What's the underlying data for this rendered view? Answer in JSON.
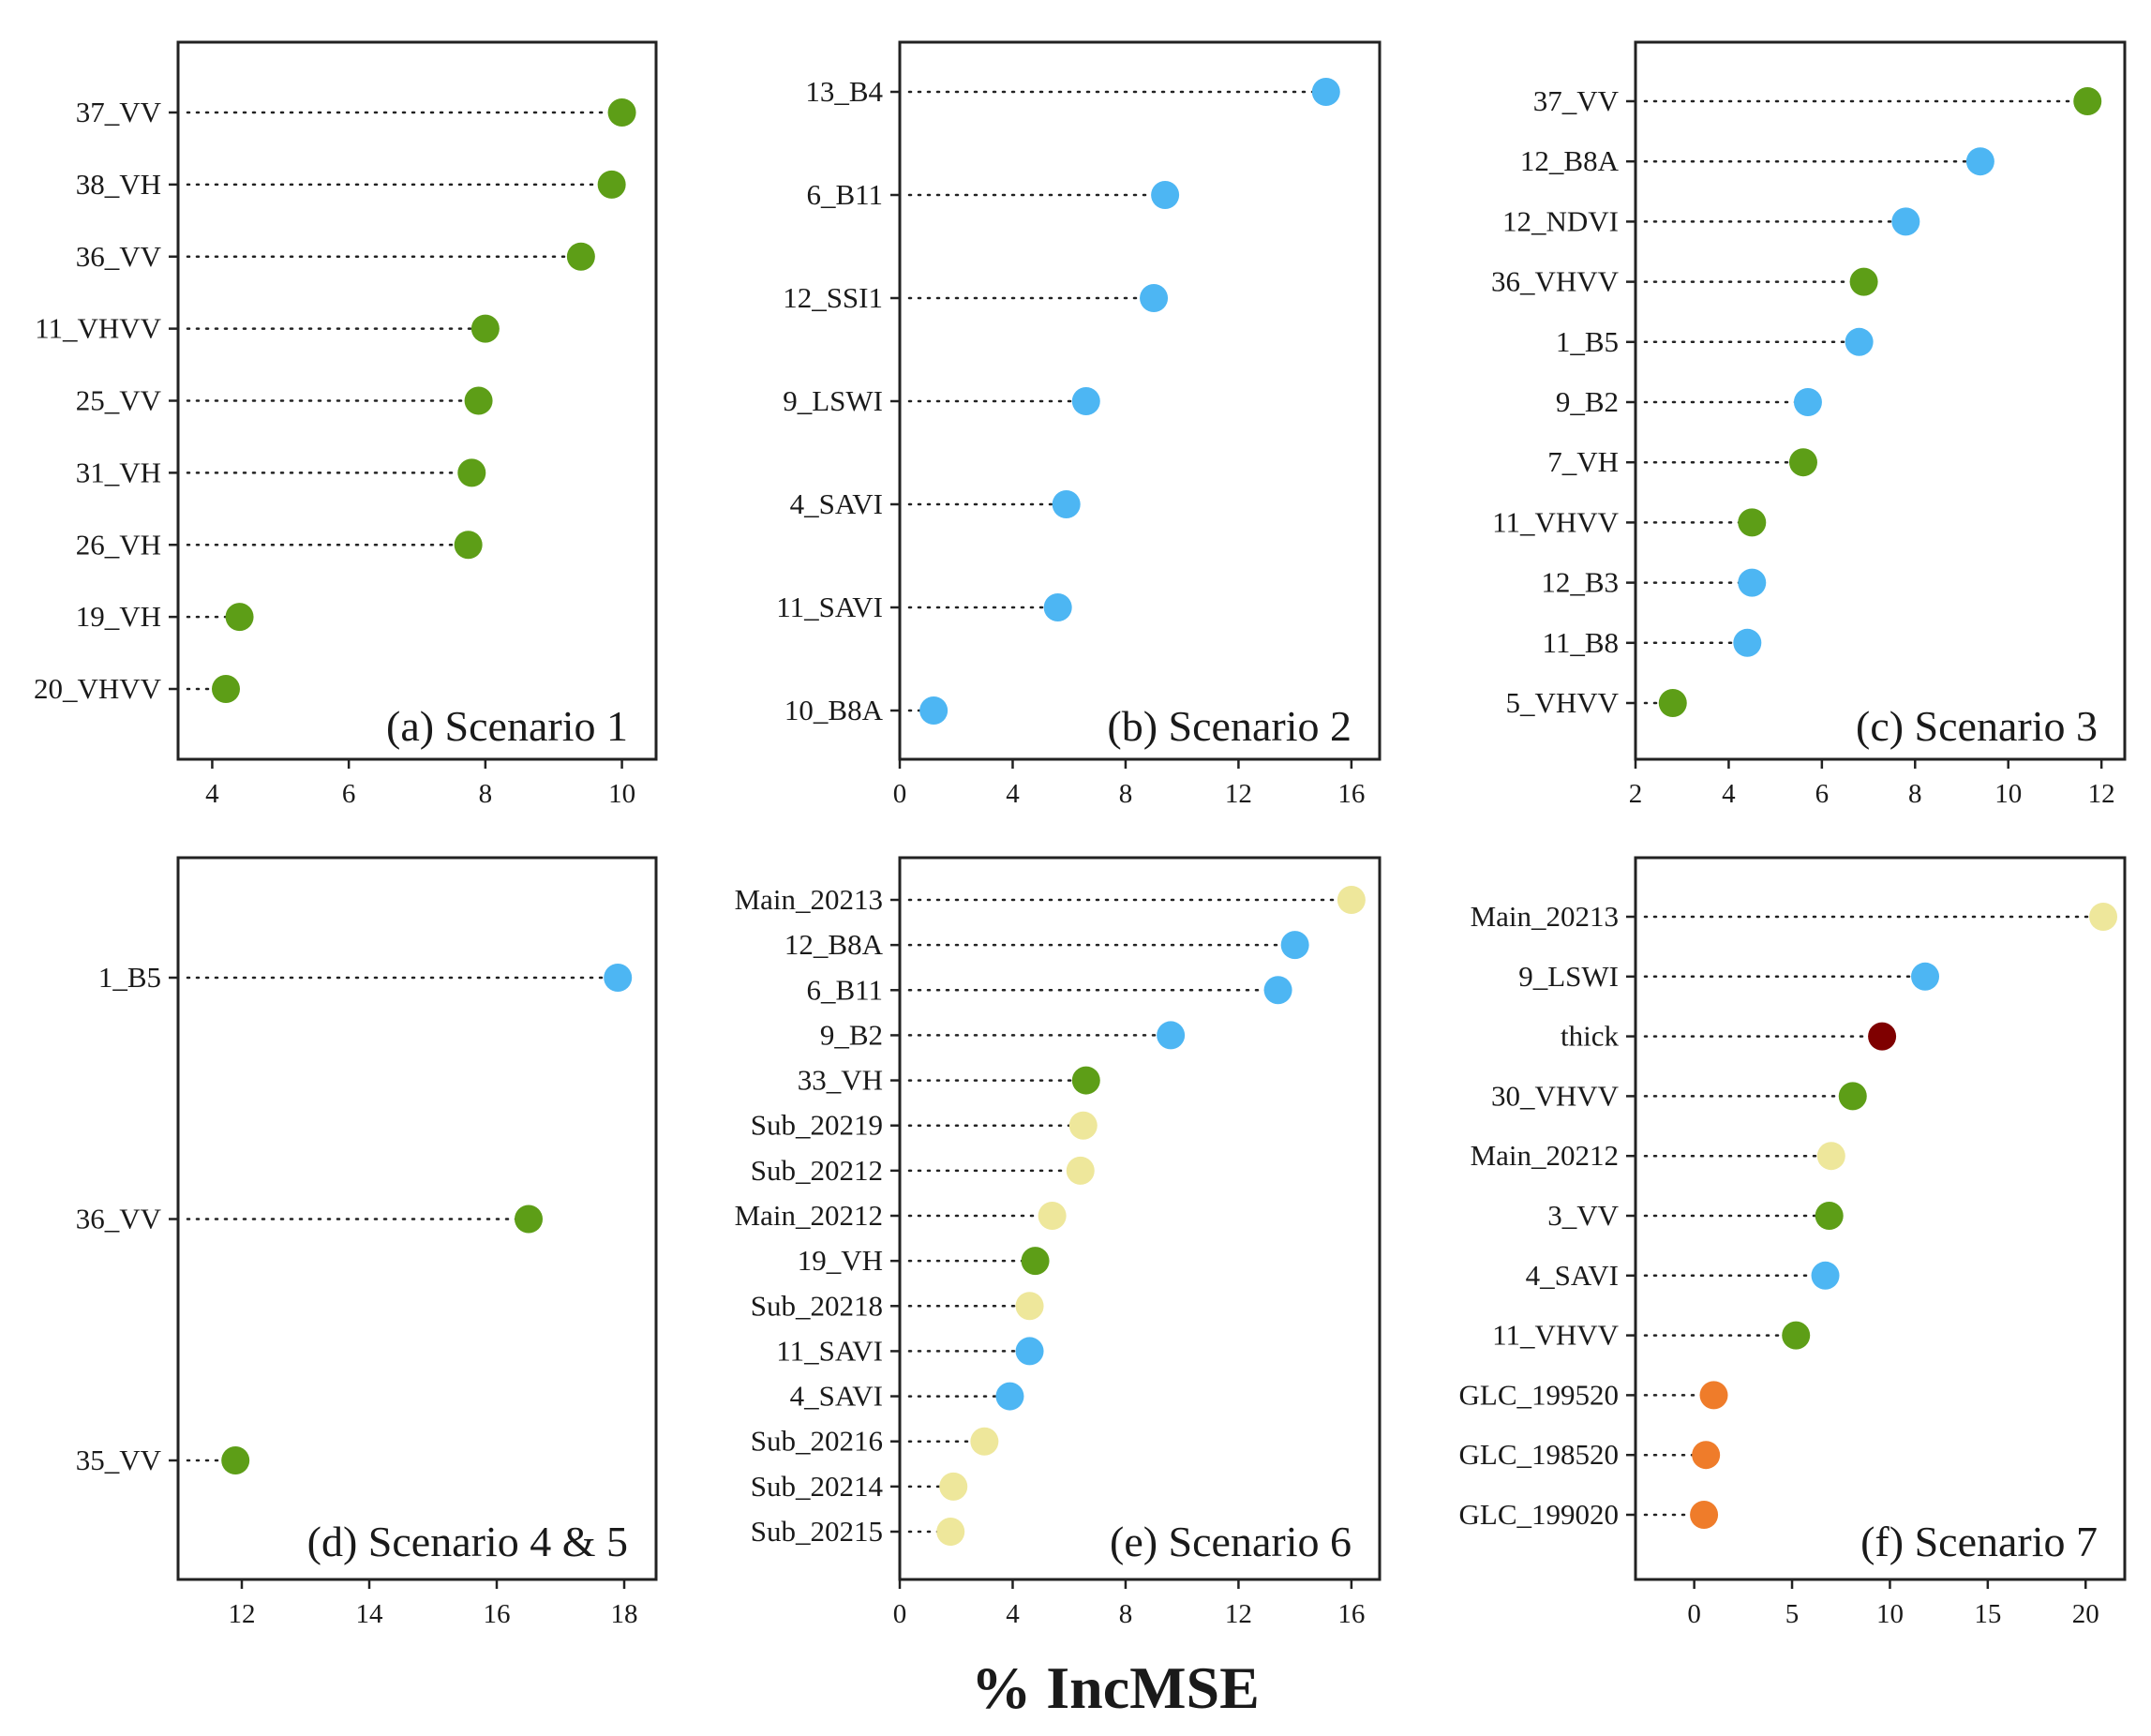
{
  "colors": {
    "green": "#5d9e17",
    "blue": "#4db6f3",
    "yellow": "#eee79b",
    "darkred": "#7f0000",
    "orange": "#ef7c2a"
  },
  "figure": {
    "xlabel": "% IncMSE"
  },
  "chart_data": [
    {
      "type": "lollipop",
      "title": "(a) Scenario 1",
      "xlim": [
        3.5,
        10.5
      ],
      "xticks": [
        4,
        6,
        8,
        10
      ],
      "categories": [
        "37_VV",
        "38_VH",
        "36_VV",
        "11_VHVV",
        "25_VV",
        "31_VH",
        "26_VH",
        "19_VH",
        "20_VHVV"
      ],
      "values": [
        10.0,
        9.85,
        9.4,
        8.0,
        7.9,
        7.8,
        7.75,
        4.4,
        4.2
      ],
      "colors": [
        "green",
        "green",
        "green",
        "green",
        "green",
        "green",
        "green",
        "green",
        "green"
      ]
    },
    {
      "type": "lollipop",
      "title": "(b) Scenario 2",
      "xlim": [
        0,
        17
      ],
      "xticks": [
        0,
        4,
        8,
        12,
        16
      ],
      "categories": [
        "13_B4",
        "6_B11",
        "12_SSI1",
        "9_LSWI",
        "4_SAVI",
        "11_SAVI",
        "10_B8A"
      ],
      "values": [
        15.1,
        9.4,
        9.0,
        6.6,
        5.9,
        5.6,
        1.2
      ],
      "colors": [
        "blue",
        "blue",
        "blue",
        "blue",
        "blue",
        "blue",
        "blue"
      ]
    },
    {
      "type": "lollipop",
      "title": "(c) Scenario 3",
      "xlim": [
        2,
        12.5
      ],
      "xticks": [
        2,
        4,
        6,
        8,
        10,
        12
      ],
      "categories": [
        "37_VV",
        "12_B8A",
        "12_NDVI",
        "36_VHVV",
        "1_B5",
        "9_B2",
        "7_VH",
        "11_VHVV",
        "12_B3",
        "11_B8",
        "5_VHVV"
      ],
      "values": [
        11.7,
        9.4,
        7.8,
        6.9,
        6.8,
        5.7,
        5.6,
        4.5,
        4.5,
        4.4,
        2.8
      ],
      "colors": [
        "green",
        "blue",
        "blue",
        "green",
        "blue",
        "blue",
        "green",
        "green",
        "blue",
        "blue",
        "green"
      ]
    },
    {
      "type": "lollipop",
      "title": "(d) Scenario 4 & 5",
      "xlim": [
        11,
        18.5
      ],
      "xticks": [
        12,
        14,
        16,
        18
      ],
      "categories": [
        "1_B5",
        "36_VV",
        "35_VV"
      ],
      "values": [
        17.9,
        16.5,
        11.9
      ],
      "colors": [
        "blue",
        "green",
        "green"
      ]
    },
    {
      "type": "lollipop",
      "title": "(e) Scenario 6",
      "xlim": [
        0,
        17
      ],
      "xticks": [
        0,
        4,
        8,
        12,
        16
      ],
      "categories": [
        "Main_20213",
        "12_B8A",
        "6_B11",
        "9_B2",
        "33_VH",
        "Sub_20219",
        "Sub_20212",
        "Main_20212",
        "19_VH",
        "Sub_20218",
        "11_SAVI",
        "4_SAVI",
        "Sub_20216",
        "Sub_20214",
        "Sub_20215"
      ],
      "values": [
        16.0,
        14.0,
        13.4,
        9.6,
        6.6,
        6.5,
        6.4,
        5.4,
        4.8,
        4.6,
        4.6,
        3.9,
        3.0,
        1.9,
        1.8
      ],
      "colors": [
        "yellow",
        "blue",
        "blue",
        "blue",
        "green",
        "yellow",
        "yellow",
        "yellow",
        "green",
        "yellow",
        "blue",
        "blue",
        "yellow",
        "yellow",
        "yellow"
      ]
    },
    {
      "type": "lollipop",
      "title": "(f) Scenario 7",
      "xlim": [
        -3,
        22
      ],
      "xticks": [
        0,
        5,
        10,
        15,
        20
      ],
      "categories": [
        "Main_20213",
        "9_LSWI",
        "thick",
        "30_VHVV",
        "Main_20212",
        "3_VV",
        "4_SAVI",
        "11_VHVV",
        "GLC_199520",
        "GLC_198520",
        "GLC_199020"
      ],
      "values": [
        20.9,
        11.8,
        9.6,
        8.1,
        7.0,
        6.9,
        6.7,
        5.2,
        1.0,
        0.6,
        0.5
      ],
      "colors": [
        "yellow",
        "blue",
        "darkred",
        "green",
        "yellow",
        "green",
        "blue",
        "green",
        "orange",
        "orange",
        "orange"
      ]
    }
  ]
}
